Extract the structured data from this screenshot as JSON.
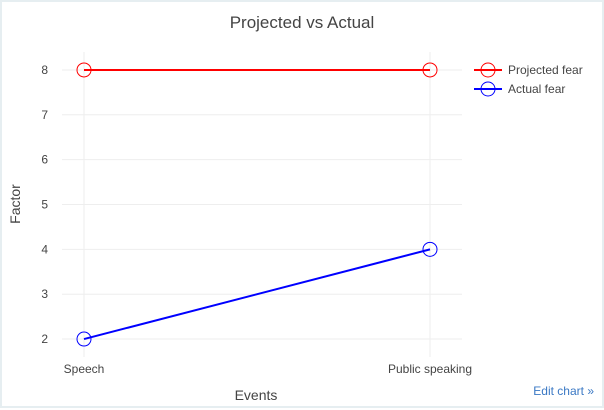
{
  "chart_data": {
    "type": "line",
    "title": "Projected vs Actual",
    "xlabel": "Events",
    "ylabel": "Factor",
    "categories": [
      "Speech",
      "Public speaking"
    ],
    "series": [
      {
        "name": "Projected fear",
        "values": [
          8,
          8
        ],
        "color": "#ff0000"
      },
      {
        "name": "Actual fear",
        "values": [
          2,
          4
        ],
        "color": "#0000ff"
      }
    ],
    "y_ticks": [
      2,
      3,
      4,
      5,
      6,
      7,
      8
    ],
    "ylim": [
      1.6,
      8.4
    ],
    "grid": true,
    "legend_position": "top-right"
  },
  "edit_link": {
    "label": "Edit chart »"
  }
}
